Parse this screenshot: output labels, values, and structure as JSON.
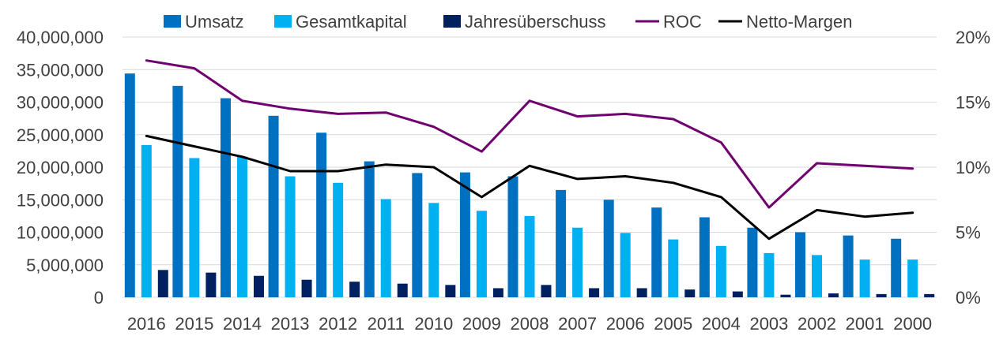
{
  "chart_data": {
    "type": "bar",
    "categories": [
      "2016",
      "2015",
      "2014",
      "2013",
      "2012",
      "2011",
      "2010",
      "2009",
      "2008",
      "2007",
      "2006",
      "2005",
      "2004",
      "2003",
      "2002",
      "2001",
      "2000"
    ],
    "series": [
      {
        "name": "Umsatz",
        "kind": "bar",
        "axis": "left",
        "color": "#0070C0",
        "values": [
          34400000,
          32500000,
          30600000,
          27900000,
          25300000,
          20900000,
          19100000,
          19200000,
          18600000,
          16500000,
          15000000,
          13800000,
          12300000,
          10700000,
          10000000,
          9500000,
          9000000
        ]
      },
      {
        "name": "Gesamtkapital",
        "kind": "bar",
        "axis": "left",
        "color": "#00B0F0",
        "values": [
          23400000,
          21400000,
          21600000,
          18600000,
          17600000,
          15100000,
          14500000,
          13300000,
          12500000,
          10700000,
          9900000,
          8900000,
          7900000,
          6800000,
          6500000,
          5800000,
          5800000
        ]
      },
      {
        "name": "Jahresüberschuss",
        "kind": "bar",
        "axis": "left",
        "color": "#002060",
        "values": [
          4200000,
          3800000,
          3300000,
          2700000,
          2400000,
          2100000,
          1900000,
          1400000,
          1900000,
          1400000,
          1400000,
          1200000,
          900000,
          400000,
          600000,
          500000,
          500000
        ]
      },
      {
        "name": "ROC",
        "kind": "line",
        "axis": "right",
        "color": "#700070",
        "values": [
          18.2,
          17.6,
          15.1,
          14.5,
          14.1,
          14.2,
          13.1,
          11.2,
          15.1,
          13.9,
          14.1,
          13.7,
          11.9,
          6.9,
          10.3,
          10.1,
          9.9
        ]
      },
      {
        "name": "Netto-Margen",
        "kind": "line",
        "axis": "right",
        "color": "#000000",
        "values": [
          12.4,
          11.6,
          10.8,
          9.7,
          9.7,
          10.2,
          10.0,
          7.7,
          10.1,
          9.1,
          9.3,
          8.8,
          7.7,
          4.5,
          6.7,
          6.2,
          6.5
        ]
      }
    ],
    "y_left": {
      "min": 0,
      "max": 40000000,
      "ticks": [
        "0",
        "5,000,000",
        "10,000,000",
        "15,000,000",
        "20,000,000",
        "25,000,000",
        "30,000,000",
        "35,000,000",
        "40,000,000"
      ]
    },
    "y_right": {
      "min": 0,
      "max": 20,
      "ticks": [
        "0%",
        "5%",
        "10%",
        "15%",
        "20%"
      ]
    },
    "grid": true,
    "legend_position": "top"
  }
}
